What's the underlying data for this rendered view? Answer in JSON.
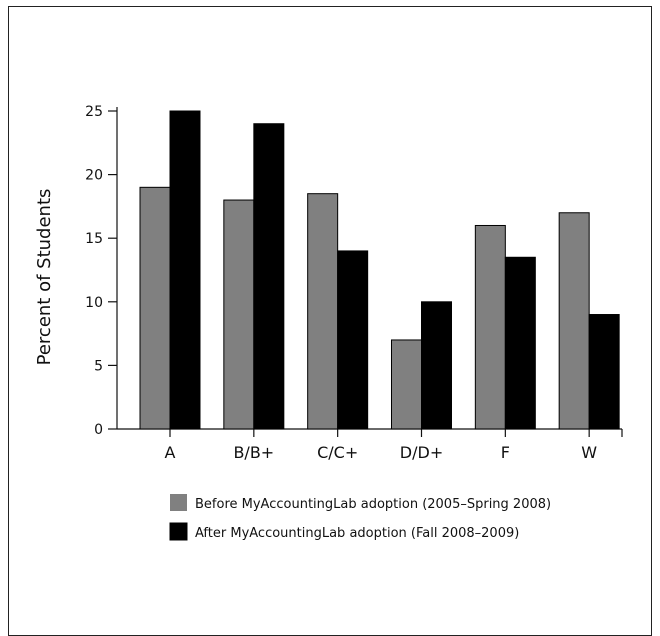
{
  "chart_data": {
    "type": "bar",
    "title": "",
    "xlabel": "",
    "ylabel": "Percent of Students",
    "categories": [
      "A",
      "B/B+",
      "C/C+",
      "D/D+",
      "F",
      "W"
    ],
    "ylim": [
      0,
      25
    ],
    "yticks": [
      0,
      5,
      10,
      15,
      20,
      25
    ],
    "grid": false,
    "legend_position": "bottom",
    "series": [
      {
        "name": "Before MyAccountingLab adoption (2005–Spring 2008)",
        "color": "#808080",
        "values": [
          19,
          18,
          18.5,
          7,
          16,
          17
        ]
      },
      {
        "name": "After MyAccountingLab adoption (Fall 2008–2009)",
        "color": "#000000",
        "values": [
          25,
          24,
          14,
          10,
          13.5,
          9
        ]
      }
    ]
  }
}
